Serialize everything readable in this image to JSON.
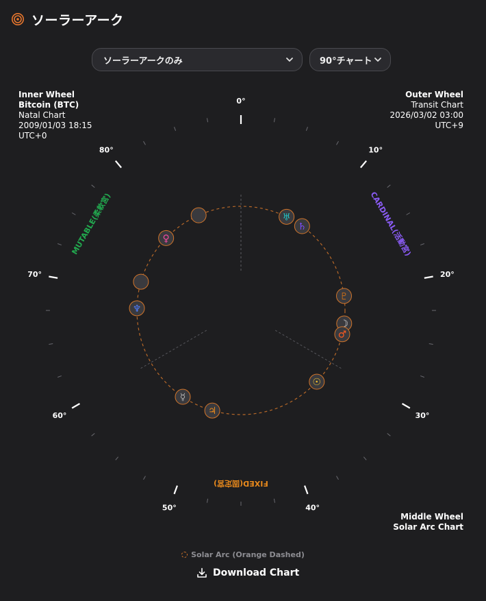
{
  "header": {
    "title": "ソーラーアーク",
    "icon": "target-icon",
    "accent": "#e8772e"
  },
  "controls": {
    "mode_select": {
      "value": "ソーラーアークのみ"
    },
    "chart_select": {
      "value": "90°チャート"
    }
  },
  "inner_wheel": {
    "heading": "Inner Wheel",
    "name": "Bitcoin (BTC)",
    "chart": "Natal Chart",
    "datetime": "2009/01/03 18:15",
    "tz": "UTC+0"
  },
  "outer_wheel": {
    "heading": "Outer Wheel",
    "chart": "Transit Chart",
    "datetime": "2026/03/02 03:00",
    "tz": "UTC+9"
  },
  "middle_wheel": {
    "heading": "Middle Wheel",
    "chart": "Solar Arc Chart"
  },
  "dial": {
    "degree_labels": [
      {
        "deg": 0,
        "label": "0°"
      },
      {
        "deg": 10,
        "label": "10°"
      },
      {
        "deg": 20,
        "label": "20°"
      },
      {
        "deg": 30,
        "label": "30°"
      },
      {
        "deg": 40,
        "label": "40°"
      },
      {
        "deg": 50,
        "label": "50°"
      },
      {
        "deg": 60,
        "label": "60°"
      },
      {
        "deg": 70,
        "label": "70°"
      },
      {
        "deg": 80,
        "label": "80°"
      }
    ],
    "modalities": [
      {
        "label": "CARDINAL(活動宮)",
        "deg": 15,
        "color": "#8b5cf6"
      },
      {
        "label": "FIXED(固定宮)",
        "deg": 45,
        "color": "#e8891c"
      },
      {
        "label": "MUTABLE(柔軟宮)",
        "deg": 75,
        "color": "#22a94f"
      }
    ],
    "planets": [
      {
        "name": "uranus",
        "glyph": "♅",
        "deg": 6.5,
        "color": "#22c3c3"
      },
      {
        "name": "saturn",
        "glyph": "♄",
        "deg": 9.0,
        "color": "#7c4dff"
      },
      {
        "name": "pluto",
        "glyph": "♇",
        "deg": 20.5,
        "color": "#c06a1a"
      },
      {
        "name": "moon",
        "glyph": "☽",
        "deg": 24.3,
        "color": "#d9d9d9"
      },
      {
        "name": "mars",
        "glyph": "♂",
        "deg": 25.8,
        "color": "#ff5a1f"
      },
      {
        "name": "sun",
        "glyph": "☉",
        "deg": 33.3,
        "color": "#f4c430"
      },
      {
        "name": "jupiter",
        "glyph": "♃",
        "deg": 49.0,
        "color": "#e8891c"
      },
      {
        "name": "mercury",
        "glyph": "☿",
        "deg": 53.5,
        "color": "#b0b0b0"
      },
      {
        "name": "neptune",
        "glyph": "♆",
        "deg": 67.8,
        "color": "#4f7cff"
      },
      {
        "name": "empty-a",
        "glyph": "",
        "deg": 71.5,
        "color": "#9a9a9a"
      },
      {
        "name": "venus",
        "glyph": "♀",
        "deg": 78.5,
        "color": "#f04aa0"
      },
      {
        "name": "empty-b",
        "glyph": "",
        "deg": 84.0,
        "color": "#9a9a9a"
      }
    ]
  },
  "legend": {
    "label": "Solar Arc (Orange Dashed)",
    "color": "#d2752a"
  },
  "download": {
    "label": "Download Chart",
    "icon": "download-icon"
  }
}
